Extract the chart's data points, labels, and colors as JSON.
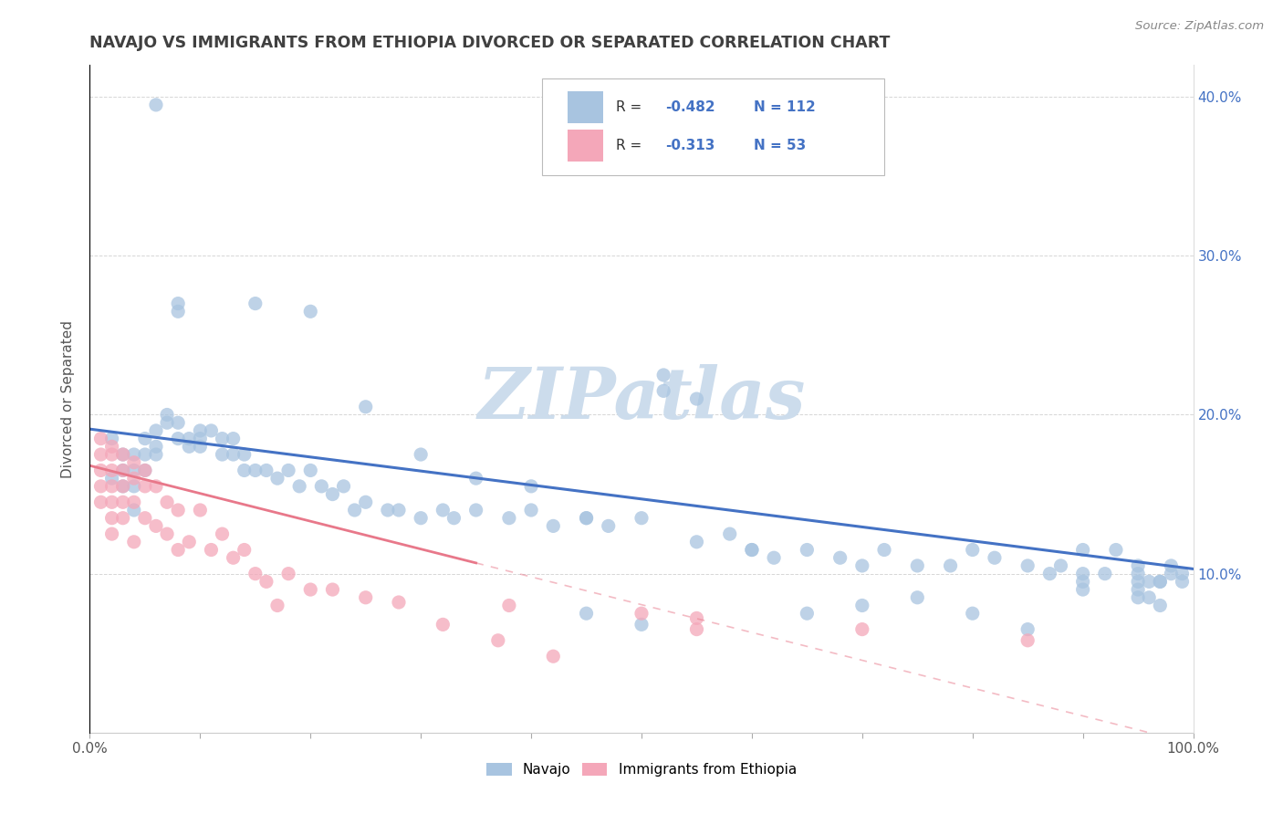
{
  "title": "NAVAJO VS IMMIGRANTS FROM ETHIOPIA DIVORCED OR SEPARATED CORRELATION CHART",
  "source": "Source: ZipAtlas.com",
  "ylabel": "Divorced or Separated",
  "xlim": [
    0,
    1.0
  ],
  "ylim": [
    0,
    0.42
  ],
  "xtick_positions": [
    0.0,
    0.1,
    0.2,
    0.3,
    0.4,
    0.5,
    0.6,
    0.7,
    0.8,
    0.9,
    1.0
  ],
  "xtick_labels": [
    "0.0%",
    "",
    "",
    "",
    "",
    "",
    "",
    "",
    "",
    "",
    "100.0%"
  ],
  "ytick_positions": [
    0.0,
    0.1,
    0.2,
    0.3,
    0.4
  ],
  "ytick_labels": [
    "",
    "10.0%",
    "20.0%",
    "30.0%",
    "40.0%"
  ],
  "navajo_color": "#a8c4e0",
  "ethiopia_color": "#f4a7b9",
  "navajo_line_color": "#4472c4",
  "ethiopia_line_color": "#e8788a",
  "legend_R_navajo": "-0.482",
  "legend_N_navajo": "112",
  "legend_R_ethiopia": "-0.313",
  "legend_N_ethiopia": "53",
  "watermark": "ZIPatlas",
  "watermark_color": "#ccdcec",
  "title_color": "#404040",
  "label_color": "#606060",
  "rn_color": "#4472c4",
  "r_label_color": "#333333",
  "navajo_x": [
    0.02,
    0.02,
    0.03,
    0.03,
    0.03,
    0.04,
    0.04,
    0.04,
    0.04,
    0.05,
    0.05,
    0.05,
    0.06,
    0.06,
    0.06,
    0.07,
    0.07,
    0.08,
    0.08,
    0.09,
    0.09,
    0.1,
    0.1,
    0.1,
    0.11,
    0.12,
    0.12,
    0.13,
    0.13,
    0.14,
    0.14,
    0.15,
    0.16,
    0.17,
    0.18,
    0.19,
    0.2,
    0.21,
    0.22,
    0.23,
    0.24,
    0.25,
    0.27,
    0.28,
    0.3,
    0.32,
    0.33,
    0.35,
    0.38,
    0.4,
    0.42,
    0.45,
    0.47,
    0.5,
    0.52,
    0.55,
    0.55,
    0.58,
    0.6,
    0.52,
    0.62,
    0.65,
    0.68,
    0.7,
    0.72,
    0.75,
    0.78,
    0.8,
    0.82,
    0.85,
    0.87,
    0.88,
    0.9,
    0.9,
    0.92,
    0.93,
    0.95,
    0.95,
    0.96,
    0.97,
    0.97,
    0.98,
    0.98,
    0.99,
    0.99,
    0.2,
    0.06,
    0.15,
    0.08,
    0.08,
    0.25,
    0.3,
    0.35,
    0.4,
    0.45,
    0.45,
    0.5,
    0.6,
    0.65,
    0.7,
    0.75,
    0.8,
    0.85,
    0.9,
    0.9,
    0.95,
    0.95,
    0.95,
    0.96,
    0.97
  ],
  "navajo_y": [
    0.185,
    0.16,
    0.175,
    0.165,
    0.155,
    0.175,
    0.165,
    0.155,
    0.14,
    0.185,
    0.175,
    0.165,
    0.19,
    0.18,
    0.175,
    0.2,
    0.195,
    0.195,
    0.185,
    0.185,
    0.18,
    0.19,
    0.185,
    0.18,
    0.19,
    0.185,
    0.175,
    0.185,
    0.175,
    0.175,
    0.165,
    0.165,
    0.165,
    0.16,
    0.165,
    0.155,
    0.165,
    0.155,
    0.15,
    0.155,
    0.14,
    0.145,
    0.14,
    0.14,
    0.135,
    0.14,
    0.135,
    0.14,
    0.135,
    0.14,
    0.13,
    0.135,
    0.13,
    0.135,
    0.215,
    0.21,
    0.12,
    0.125,
    0.115,
    0.225,
    0.11,
    0.115,
    0.11,
    0.105,
    0.115,
    0.105,
    0.105,
    0.115,
    0.11,
    0.105,
    0.1,
    0.105,
    0.1,
    0.115,
    0.1,
    0.115,
    0.1,
    0.105,
    0.095,
    0.095,
    0.095,
    0.1,
    0.105,
    0.095,
    0.1,
    0.265,
    0.395,
    0.27,
    0.265,
    0.27,
    0.205,
    0.175,
    0.16,
    0.155,
    0.075,
    0.135,
    0.068,
    0.115,
    0.075,
    0.08,
    0.085,
    0.075,
    0.065,
    0.095,
    0.09,
    0.095,
    0.09,
    0.085,
    0.085,
    0.08
  ],
  "ethiopia_x": [
    0.01,
    0.01,
    0.01,
    0.01,
    0.01,
    0.02,
    0.02,
    0.02,
    0.02,
    0.02,
    0.02,
    0.02,
    0.03,
    0.03,
    0.03,
    0.03,
    0.03,
    0.04,
    0.04,
    0.04,
    0.04,
    0.05,
    0.05,
    0.05,
    0.06,
    0.06,
    0.07,
    0.07,
    0.08,
    0.08,
    0.09,
    0.1,
    0.11,
    0.12,
    0.13,
    0.14,
    0.15,
    0.16,
    0.17,
    0.18,
    0.2,
    0.22,
    0.25,
    0.28,
    0.32,
    0.37,
    0.42,
    0.5,
    0.55,
    0.38,
    0.55,
    0.7,
    0.85
  ],
  "ethiopia_y": [
    0.185,
    0.175,
    0.165,
    0.155,
    0.145,
    0.18,
    0.175,
    0.165,
    0.155,
    0.145,
    0.135,
    0.125,
    0.175,
    0.165,
    0.155,
    0.145,
    0.135,
    0.17,
    0.16,
    0.145,
    0.12,
    0.165,
    0.155,
    0.135,
    0.155,
    0.13,
    0.145,
    0.125,
    0.14,
    0.115,
    0.12,
    0.14,
    0.115,
    0.125,
    0.11,
    0.115,
    0.1,
    0.095,
    0.08,
    0.1,
    0.09,
    0.09,
    0.085,
    0.082,
    0.068,
    0.058,
    0.048,
    0.075,
    0.065,
    0.08,
    0.072,
    0.065,
    0.058
  ]
}
